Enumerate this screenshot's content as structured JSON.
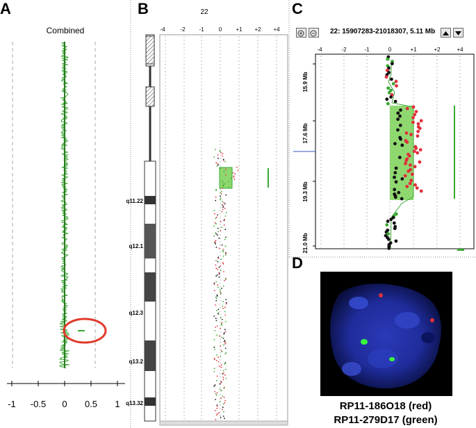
{
  "panels": {
    "a": {
      "letter": "A",
      "title": "Combined",
      "axis_ticks": [
        "-1",
        "-0.5",
        "0",
        "0.5",
        "1"
      ]
    },
    "b": {
      "letter": "B",
      "chromosome": "22",
      "scale_ticks": [
        "-4",
        "-2",
        "-1",
        "0",
        "+1",
        "+2",
        "+4"
      ],
      "bands": [
        "q11.22",
        "q12.1",
        "q12.3",
        "q13.2",
        "q13.32"
      ]
    },
    "c": {
      "letter": "C",
      "region": "22: 15907283-21018307, 5.11 Mb",
      "scale_ticks": [
        "-4",
        "-2",
        "-1",
        "0",
        "+1",
        "+2",
        "+4"
      ],
      "positions": [
        "15.9 Mb",
        "17.6 Mb",
        "19.3 Mb",
        "21.0 Mb"
      ],
      "zoom_in_icon": "zoom-in-icon",
      "zoom_out_icon": "zoom-out-icon",
      "up_icon": "arrow-up-icon",
      "down_icon": "arrow-down-icon"
    },
    "d": {
      "letter": "D",
      "probe_red": "RP11-186O18 (red)",
      "probe_green": "RP11-279D17 (green)"
    }
  },
  "colors": {
    "green": "#3aa832",
    "red": "#e0303a",
    "black": "#111111",
    "highlight": "#8fd870",
    "circle": "#e03a2a",
    "nucleus": "#1a2aa0"
  }
}
